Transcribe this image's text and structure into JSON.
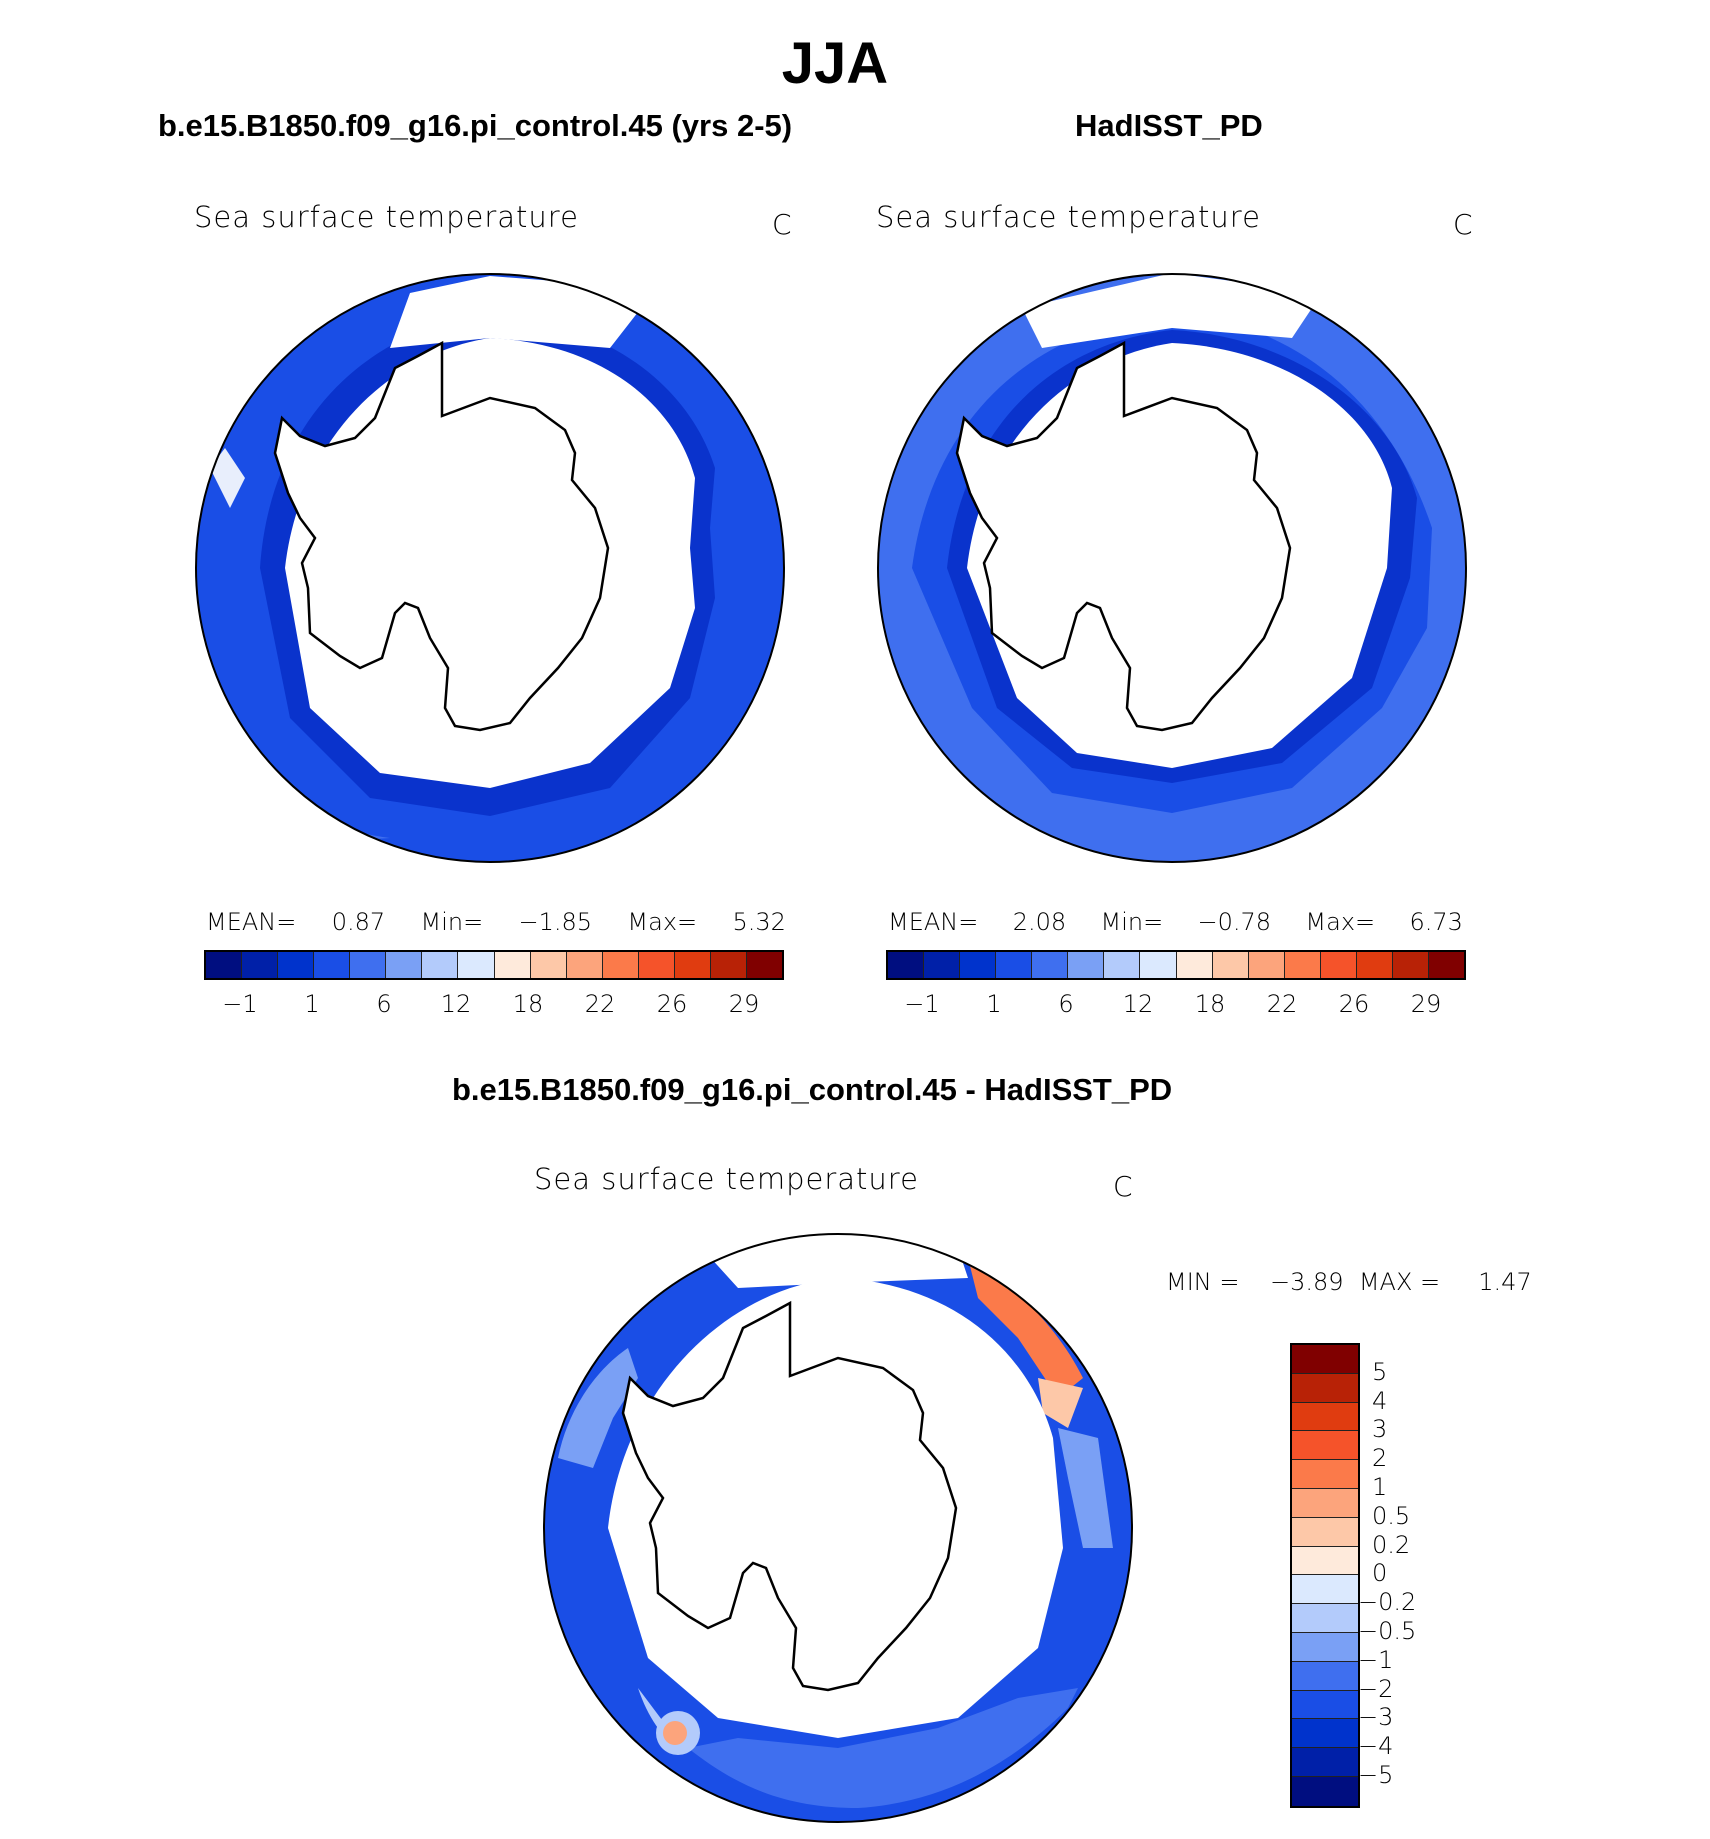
{
  "title": "JJA",
  "panels": [
    {
      "title": "b.e15.B1850.f09_g16.pi_control.45 (yrs 2-5)",
      "field_label": "Sea surface temperature",
      "unit": "C",
      "stats": {
        "mean_label": "MEAN=",
        "mean": "0.87",
        "min_label": "Min=",
        "min": "−1.85",
        "max_label": "Max=",
        "max": "5.32"
      }
    },
    {
      "title": "HadISST_PD",
      "field_label": "Sea surface temperature",
      "unit": "C",
      "stats": {
        "mean_label": "MEAN=",
        "mean": "2.08",
        "min_label": "Min=",
        "min": "−0.78",
        "max_label": "Max=",
        "max": "6.73"
      }
    }
  ],
  "diff": {
    "title": "b.e15.B1850.f09_g16.pi_control.45 - HadISST_PD",
    "field_label": "Sea surface temperature",
    "unit": "C",
    "min_label": "MIN =",
    "min": "−3.89",
    "max_label": "MAX =",
    "max": "1.47"
  },
  "colorbar_abs": {
    "colors": [
      "#000e80",
      "#0020a8",
      "#0033cc",
      "#1a4ee6",
      "#3f6fef",
      "#7aa0f5",
      "#b3cbfb",
      "#dbe9fe",
      "#feeadb",
      "#fdc8a8",
      "#fca47c",
      "#fb7a4a",
      "#f5532a",
      "#e03c10",
      "#b82206",
      "#800000"
    ],
    "labels": [
      "−1",
      "1",
      "6",
      "12",
      "18",
      "22",
      "26",
      "29"
    ]
  },
  "colorbar_diff": {
    "colors_top_to_bottom": [
      "#800000",
      "#b82206",
      "#e03c10",
      "#f5532a",
      "#fb7a4a",
      "#fca47c",
      "#fdc8a8",
      "#feeadb",
      "#dbe9fe",
      "#b3cbfb",
      "#7aa0f5",
      "#3f6fef",
      "#1a4ee6",
      "#0033cc",
      "#0020a8",
      "#000e80"
    ],
    "labels": [
      "5",
      "4",
      "3",
      "2",
      "1",
      "0.5",
      "0.2",
      "0",
      "−0.2",
      "−0.5",
      "−1",
      "−2",
      "−3",
      "−4",
      "−5"
    ]
  },
  "colors": {
    "ocean_deep": "#0a33cc",
    "ocean_mid": "#1a4ee6",
    "ocean_light": "#3f6fef",
    "land": "#ffffff",
    "coast": "#000000"
  }
}
